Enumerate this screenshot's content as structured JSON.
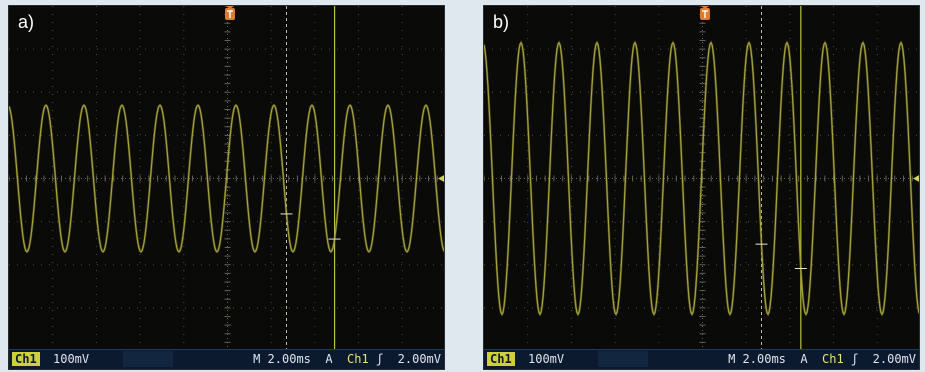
{
  "colors": {
    "trace": "#a7a23a",
    "trigger_marker": "#e07a2c",
    "cursor_line": "#b9c437",
    "grid": "#6a6a60",
    "status_bg": "#0b1a2f"
  },
  "icons": {
    "trigger_position": "trigger-position-icon",
    "ground_level": "ground-level-arrow-icon"
  },
  "panels": [
    {
      "id": "a",
      "label": "a)",
      "signal": {
        "cycles_on_screen": 11.5,
        "amplitude_div": 1.7,
        "phase_deg": 100
      },
      "status": {
        "channel": "Ch1",
        "volts_per_div": "100mV",
        "timebase": "M 2.00ms",
        "trigger_mode": "A",
        "trigger_channel": "Ch1",
        "slope_symbol": "ʃ",
        "trigger_level": "2.00mV"
      }
    },
    {
      "id": "b",
      "label": "b)",
      "signal": {
        "cycles_on_screen": 11.5,
        "amplitude_div": 3.15,
        "phase_deg": 100
      },
      "status": {
        "channel": "Ch1",
        "volts_per_div": "100mV",
        "timebase": "M 2.00ms",
        "trigger_mode": "A",
        "trigger_channel": "Ch1",
        "slope_symbol": "ʃ",
        "trigger_level": "2.00mV"
      }
    }
  ]
}
